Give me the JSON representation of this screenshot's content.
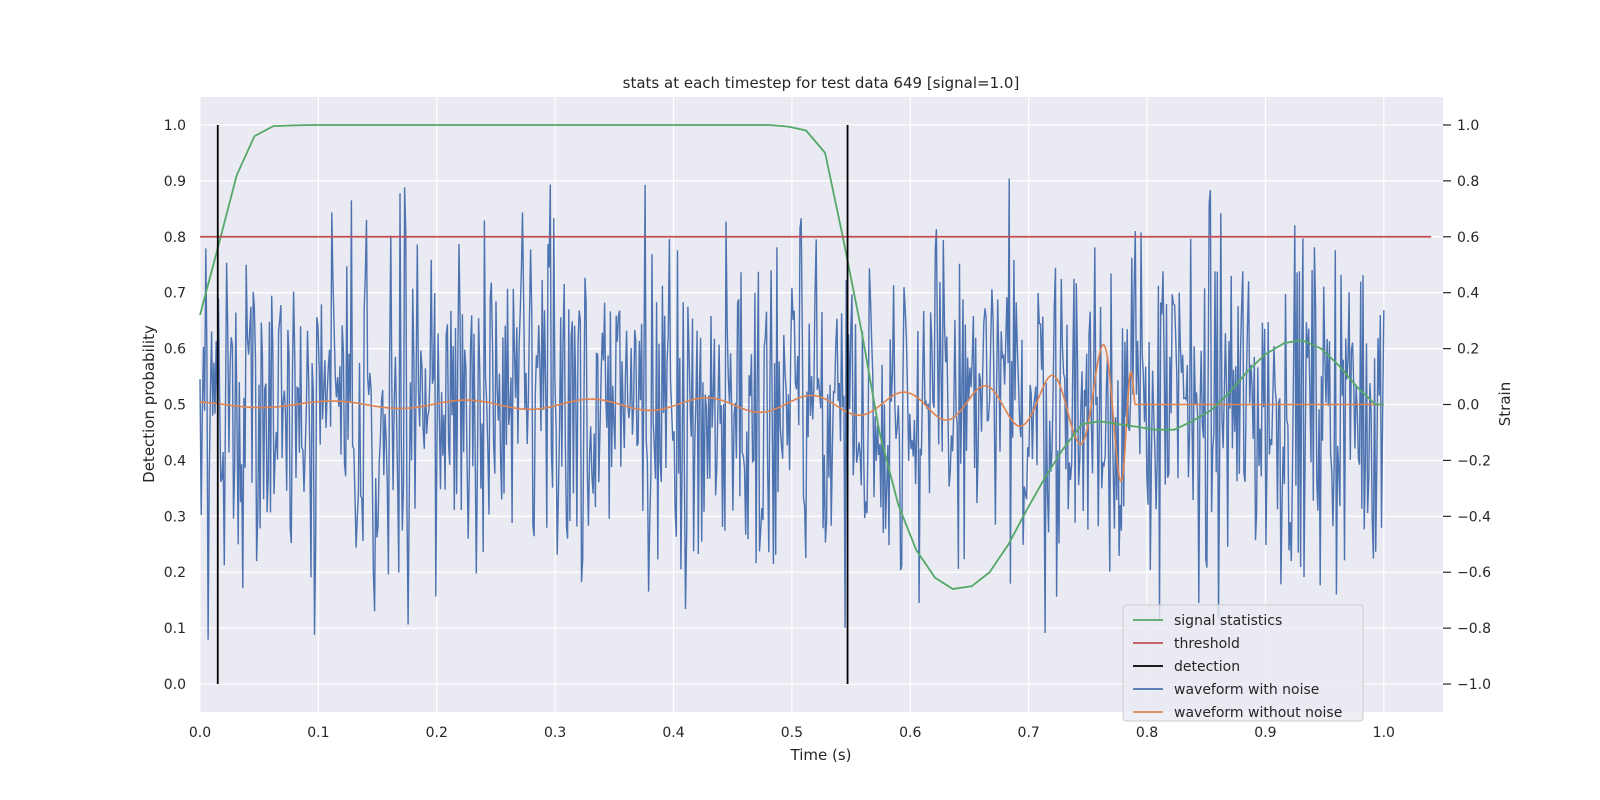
{
  "chart_data": {
    "type": "line",
    "title": "stats at each timestep for test data 649 [signal=1.0]",
    "xlabel": "Time (s)",
    "ylabel_left": "Detection probability",
    "ylabel_right": "Strain",
    "xlim": [
      0.0,
      1.05
    ],
    "ylim_left": [
      -0.05,
      1.05
    ],
    "ylim_right": [
      -1.1,
      1.1
    ],
    "x_ticks": [
      0.0,
      0.1,
      0.2,
      0.3,
      0.4,
      0.5,
      0.6,
      0.7,
      0.8,
      0.9,
      1.0
    ],
    "x_tick_labels": [
      "0.0",
      "0.1",
      "0.2",
      "0.3",
      "0.4",
      "0.5",
      "0.6",
      "0.7",
      "0.8",
      "0.9",
      "1.0"
    ],
    "y_left_ticks": [
      0.0,
      0.1,
      0.2,
      0.3,
      0.4,
      0.5,
      0.6,
      0.7,
      0.8,
      0.9,
      1.0
    ],
    "y_left_tick_labels": [
      "0.0",
      "0.1",
      "0.2",
      "0.3",
      "0.4",
      "0.5",
      "0.6",
      "0.7",
      "0.8",
      "0.9",
      "1.0"
    ],
    "y_right_ticks": [
      -1.0,
      -0.8,
      -0.6,
      -0.4,
      -0.2,
      0.0,
      0.2,
      0.4,
      0.6,
      0.8,
      1.0
    ],
    "y_right_tick_labels": [
      "−1.0",
      "−0.8",
      "−0.6",
      "−0.4",
      "−0.2",
      "0.0",
      "0.2",
      "0.4",
      "0.6",
      "0.8",
      "1.0"
    ],
    "grid": true,
    "legend_position": "lower-right",
    "colors": {
      "axes_bg": "#eaeaf2",
      "grid": "#ffffff",
      "signal": "#55a868",
      "threshold": "#c44e52",
      "detection": "#000000",
      "noisy": "#4c72b0",
      "clean": "#dd8452"
    },
    "series": [
      {
        "name": "signal statistics",
        "axis": "left",
        "x": [
          0.0,
          0.015,
          0.031,
          0.046,
          0.062,
          0.077,
          0.093,
          0.108,
          0.124,
          0.14,
          0.155,
          0.171,
          0.186,
          0.202,
          0.217,
          0.233,
          0.248,
          0.264,
          0.279,
          0.295,
          0.31,
          0.326,
          0.342,
          0.357,
          0.373,
          0.388,
          0.404,
          0.419,
          0.435,
          0.45,
          0.466,
          0.481,
          0.497,
          0.512,
          0.528,
          0.543,
          0.559,
          0.574,
          0.59,
          0.605,
          0.621,
          0.636,
          0.652,
          0.667,
          0.683,
          0.698,
          0.714,
          0.729,
          0.745,
          0.76,
          0.776,
          0.792,
          0.807,
          0.823,
          0.838,
          0.854,
          0.869,
          0.885,
          0.9,
          0.916,
          0.931,
          0.947,
          0.962,
          0.978,
          0.993,
          1.0
        ],
        "y": [
          0.66,
          0.78,
          0.91,
          0.98,
          0.998,
          0.999,
          1.0,
          1.0,
          1.0,
          1.0,
          1.0,
          1.0,
          1.0,
          1.0,
          1.0,
          1.0,
          1.0,
          1.0,
          1.0,
          1.0,
          1.0,
          1.0,
          1.0,
          1.0,
          1.0,
          1.0,
          1.0,
          1.0,
          1.0,
          1.0,
          1.0,
          1.0,
          0.997,
          0.99,
          0.95,
          0.8,
          0.63,
          0.45,
          0.32,
          0.24,
          0.19,
          0.17,
          0.175,
          0.2,
          0.25,
          0.31,
          0.37,
          0.42,
          0.465,
          0.47,
          0.465,
          0.46,
          0.455,
          0.455,
          0.47,
          0.49,
          0.52,
          0.56,
          0.59,
          0.61,
          0.615,
          0.6,
          0.57,
          0.53,
          0.5,
          0.5
        ]
      },
      {
        "name": "threshold",
        "axis": "left",
        "x": [
          0.0,
          1.04
        ],
        "y": [
          0.8,
          0.8
        ]
      },
      {
        "name": "detection",
        "axis": "left",
        "lines_x": [
          0.015,
          0.547
        ],
        "y_range": [
          0.0,
          1.0
        ]
      },
      {
        "name": "waveform with noise",
        "axis": "right",
        "x": [
          0.0,
          1.0
        ],
        "amplitude_sd": 0.3,
        "amplitude_range": [
          -1.0,
          1.0
        ]
      },
      {
        "name": "waveform without noise",
        "axis": "right",
        "x": [
          0.0,
          0.1,
          0.2,
          0.3,
          0.4,
          0.5,
          0.6,
          0.7,
          0.74,
          0.76,
          0.77,
          0.78,
          0.785,
          0.79,
          1.0
        ],
        "envelope": [
          0.01,
          0.012,
          0.015,
          0.018,
          0.022,
          0.03,
          0.045,
          0.08,
          0.13,
          0.2,
          0.25,
          0.28,
          0.2,
          0.0,
          0.0
        ]
      }
    ]
  }
}
